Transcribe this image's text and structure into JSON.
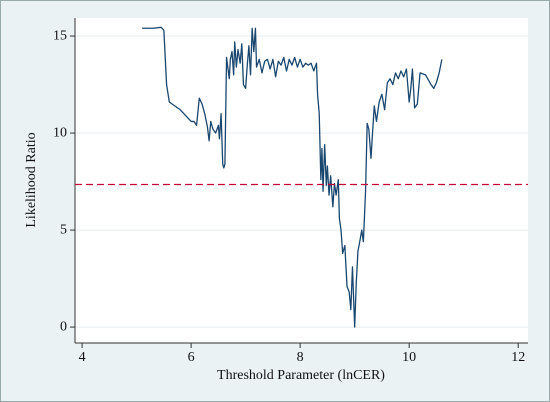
{
  "chart_data": {
    "type": "line",
    "xlabel": "Threshold Parameter (lnCER)",
    "ylabel": "Likelihood Ratio",
    "xlim": [
      3.87,
      12.18
    ],
    "ylim": [
      -0.82,
      15.93
    ],
    "xticks": [
      4,
      6,
      8,
      10,
      12
    ],
    "yticks": [
      0,
      5,
      10,
      15
    ],
    "grid": true,
    "series": [
      {
        "color": "#1a476f",
        "x": [
          5.1,
          5.3,
          5.45,
          5.5,
          5.55,
          5.6,
          5.7,
          5.8,
          5.9,
          6.0,
          6.05,
          6.1,
          6.15,
          6.2,
          6.25,
          6.3,
          6.33,
          6.36,
          6.4,
          6.45,
          6.5,
          6.52,
          6.55,
          6.58,
          6.6,
          6.62,
          6.65,
          6.7,
          6.72,
          6.75,
          6.78,
          6.8,
          6.83,
          6.86,
          6.9,
          6.93,
          6.96,
          7.0,
          7.03,
          7.06,
          7.09,
          7.12,
          7.15,
          7.18,
          7.2,
          7.25,
          7.3,
          7.35,
          7.4,
          7.45,
          7.5,
          7.55,
          7.6,
          7.65,
          7.7,
          7.75,
          7.8,
          7.85,
          7.9,
          7.95,
          8.0,
          8.05,
          8.1,
          8.15,
          8.2,
          8.25,
          8.3,
          8.32,
          8.35,
          8.38,
          8.4,
          8.42,
          8.45,
          8.48,
          8.5,
          8.53,
          8.56,
          8.6,
          8.63,
          8.66,
          8.7,
          8.72,
          8.75,
          8.78,
          8.82,
          8.86,
          8.9,
          8.93,
          8.96,
          9.0,
          9.03,
          9.06,
          9.1,
          9.13,
          9.16,
          9.2,
          9.23,
          9.26,
          9.3,
          9.33,
          9.36,
          9.4,
          9.45,
          9.5,
          9.55,
          9.6,
          9.65,
          9.7,
          9.75,
          9.8,
          9.85,
          9.9,
          9.95,
          10.0,
          10.03,
          10.06,
          10.1,
          10.15,
          10.2,
          10.3,
          10.4,
          10.45,
          10.5,
          10.55,
          10.6
        ],
        "values": [
          15.4,
          15.4,
          15.45,
          15.3,
          12.5,
          11.6,
          11.4,
          11.2,
          10.9,
          10.6,
          10.6,
          10.4,
          11.8,
          11.5,
          11.0,
          10.3,
          9.6,
          10.6,
          10.2,
          10.0,
          10.4,
          9.7,
          11.0,
          8.4,
          8.2,
          8.4,
          13.9,
          12.8,
          13.8,
          14.2,
          13.0,
          14.7,
          13.4,
          14.3,
          13.6,
          14.6,
          12.5,
          12.3,
          13.5,
          14.5,
          13.0,
          15.4,
          14.2,
          15.4,
          13.4,
          13.8,
          13.1,
          13.7,
          13.8,
          13.3,
          13.8,
          12.9,
          13.7,
          13.5,
          13.9,
          13.2,
          13.8,
          13.5,
          13.9,
          13.4,
          13.8,
          13.4,
          13.6,
          13.5,
          13.6,
          13.2,
          13.6,
          12.0,
          11.0,
          7.6,
          9.2,
          7.0,
          9.4,
          7.3,
          8.3,
          6.8,
          7.8,
          6.2,
          7.4,
          6.8,
          7.6,
          5.6,
          5.0,
          3.8,
          4.2,
          2.1,
          1.8,
          0.9,
          3.1,
          0.0,
          2.3,
          3.9,
          4.5,
          5.0,
          4.4,
          7.0,
          10.5,
          10.2,
          8.7,
          10.1,
          11.4,
          10.6,
          11.6,
          12.0,
          11.2,
          12.6,
          12.8,
          12.5,
          13.1,
          12.8,
          13.2,
          12.9,
          13.3,
          11.6,
          12.3,
          13.3,
          11.3,
          11.5,
          13.1,
          13.0,
          12.5,
          12.3,
          12.6,
          13.1,
          13.8
        ]
      }
    ],
    "hline": {
      "value": 7.35,
      "color": "#c10534",
      "dashed": true
    }
  }
}
